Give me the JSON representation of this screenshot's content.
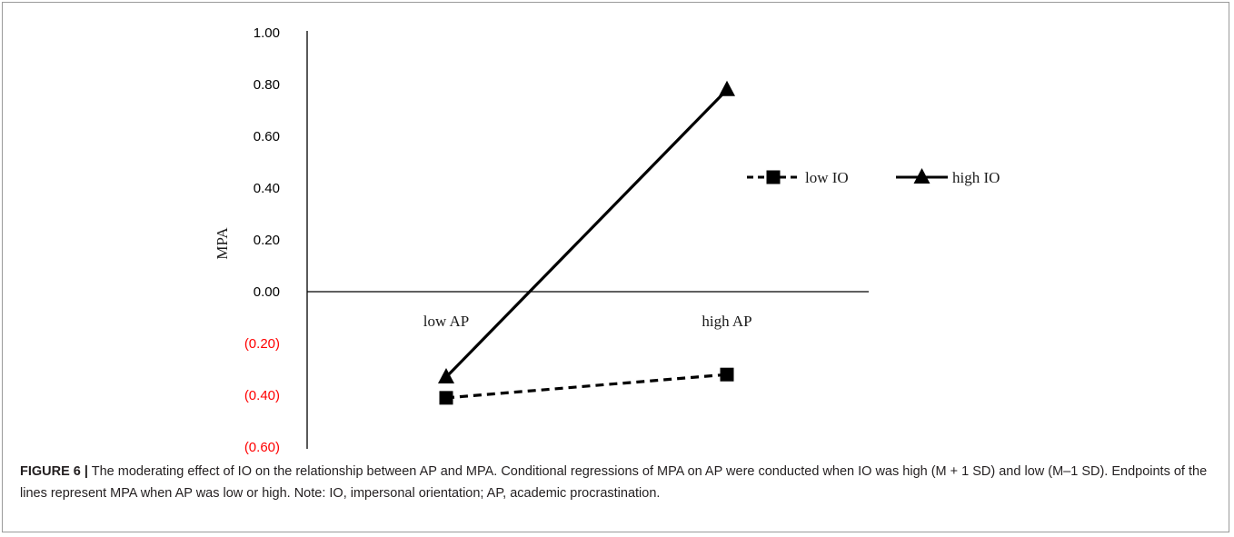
{
  "chart_data": {
    "type": "line",
    "categories": [
      "low AP",
      "high AP"
    ],
    "series": [
      {
        "name": "low IO",
        "values": [
          -0.41,
          -0.32
        ],
        "style": "dashed",
        "marker": "square"
      },
      {
        "name": "high IO",
        "values": [
          -0.33,
          0.78
        ],
        "style": "solid",
        "marker": "triangle"
      }
    ],
    "ylabel": "MPA",
    "ylim": [
      -0.6,
      1.0
    ],
    "yticks": [
      1.0,
      0.8,
      0.6,
      0.4,
      0.2,
      0.0,
      -0.2,
      -0.4,
      -0.6
    ],
    "ytick_labels": [
      "1.00",
      "0.80",
      "0.60",
      "0.40",
      "0.20",
      "0.00",
      "(0.20)",
      "(0.40)",
      "(0.60)"
    ],
    "negative_tick_color": "#ff0000",
    "positive_tick_color": "#000000",
    "line_color": "#000000",
    "legend_position": "right"
  },
  "caption": {
    "label": "FIGURE 6 |",
    "text": " The moderating effect of IO on the relationship between AP and MPA. Conditional regressions of MPA on AP were conducted when IO was high (M + 1 SD) and low (M–1 SD). Endpoints of the lines represent MPA when AP was low or high. Note: IO, impersonal orientation; AP, academic procrastination."
  }
}
